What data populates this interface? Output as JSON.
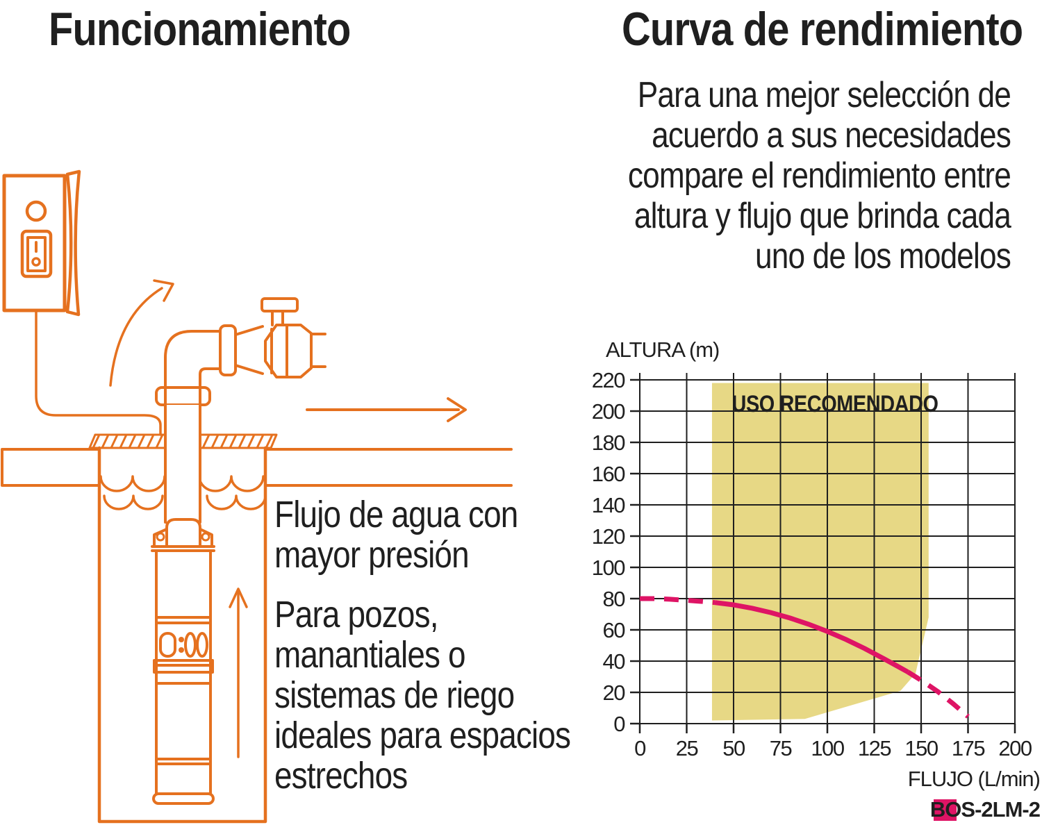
{
  "page": {
    "background": "#ffffff",
    "accent_orange": "#e5711f",
    "text_color": "#1f1f1f"
  },
  "left": {
    "title": "Funcionamiento",
    "captions": {
      "flow": [
        "Flujo de agua con",
        "mayor presión"
      ],
      "usage": [
        "Para pozos,",
        "manantiales o",
        "sistemas de riego",
        "ideales para espacios",
        "estrechos"
      ]
    },
    "diagram": {
      "pump_display": "0:00"
    }
  },
  "right": {
    "title": "Curva de rendimiento",
    "intro_lines": [
      "Para una mejor selección de",
      "acuerdo a sus necesidades",
      "compare el rendimiento entre",
      "altura y flujo que brinda cada",
      "uno de los modelos"
    ]
  },
  "chart_data": {
    "type": "line",
    "ylabel": "ALTURA (m)",
    "xlabel": "FLUJO (L/min)",
    "xlim": [
      0,
      200
    ],
    "ylim": [
      0,
      220
    ],
    "x_ticks": [
      0,
      25,
      50,
      75,
      100,
      125,
      150,
      175,
      200
    ],
    "y_ticks": [
      0,
      20,
      40,
      60,
      80,
      100,
      120,
      140,
      160,
      180,
      200,
      220
    ],
    "grid": true,
    "grid_color": "#1f1f1f",
    "recommended_label": "USO RECOMENDADO",
    "recommended_region": {
      "color": "#e7d885",
      "points": [
        [
          38.5,
          2
        ],
        [
          38.5,
          218
        ],
        [
          154,
          218
        ],
        [
          154,
          68
        ],
        [
          147,
          32
        ],
        [
          139,
          21
        ],
        [
          88,
          3
        ]
      ]
    },
    "series": [
      {
        "name": "BOS-2LM-2",
        "color": "#de1465",
        "segments": [
          {
            "style": "dashed",
            "points": [
              [
                0,
                80
              ],
              [
                8,
                80
              ],
              [
                16,
                79.6
              ],
              [
                24,
                79
              ],
              [
                32,
                78.3
              ],
              [
                40,
                77.5
              ]
            ]
          },
          {
            "style": "solid",
            "points": [
              [
                40,
                77.5
              ],
              [
                50,
                76
              ],
              [
                60,
                73.8
              ],
              [
                70,
                71
              ],
              [
                80,
                67.6
              ],
              [
                90,
                63.6
              ],
              [
                100,
                59
              ],
              [
                110,
                53.8
              ],
              [
                120,
                48
              ],
              [
                130,
                41.6
              ],
              [
                137,
                37
              ],
              [
                143,
                33
              ]
            ]
          },
          {
            "style": "dashed",
            "points": [
              [
                143,
                33
              ],
              [
                151,
                27
              ],
              [
                159,
                20.4
              ],
              [
                167,
                12.8
              ],
              [
                175,
                4.5
              ]
            ]
          }
        ]
      }
    ],
    "legend": {
      "label": "BOS-2LM-2",
      "color": "#de1465"
    }
  }
}
